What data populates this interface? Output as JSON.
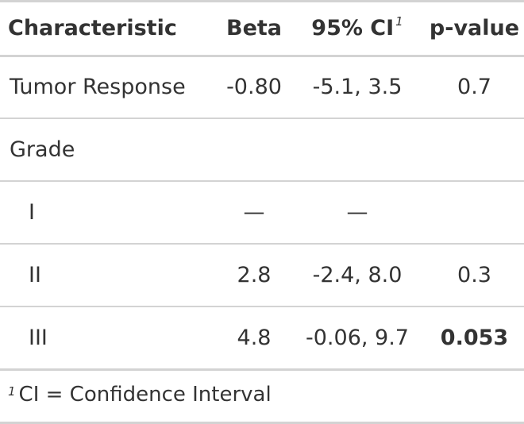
{
  "table": {
    "headers": {
      "characteristic": "Characteristic",
      "beta": "Beta",
      "ci": "95% CI",
      "ci_footnote_mark": "1",
      "p_value": "p-value"
    },
    "rows": [
      {
        "label": "Tumor Response",
        "beta": "-0.80",
        "ci": "-5.1, 3.5",
        "p": "0.7",
        "indent": false,
        "p_bold": false
      },
      {
        "label": "Grade",
        "beta": "",
        "ci": "",
        "p": "",
        "indent": false,
        "p_bold": false
      },
      {
        "label": "I",
        "beta": "—",
        "ci": "—",
        "p": "",
        "indent": true,
        "p_bold": false
      },
      {
        "label": "II",
        "beta": "2.8",
        "ci": "-2.4, 8.0",
        "p": "0.3",
        "indent": true,
        "p_bold": false
      },
      {
        "label": "III",
        "beta": "4.8",
        "ci": "-0.06, 9.7",
        "p": "0.053",
        "indent": true,
        "p_bold": true
      }
    ]
  },
  "footnote": {
    "mark": "1",
    "text": "CI = Confidence Interval"
  },
  "colors": {
    "text": "#333333",
    "rule": "#d3d3d3",
    "background": "#ffffff"
  }
}
